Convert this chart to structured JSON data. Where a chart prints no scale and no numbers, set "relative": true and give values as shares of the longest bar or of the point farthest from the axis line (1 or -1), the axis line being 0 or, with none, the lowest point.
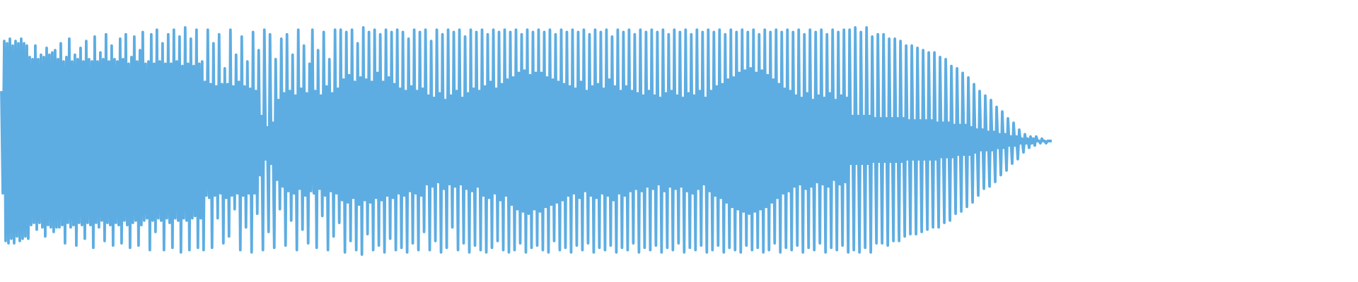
{
  "chart_data": {
    "type": "line",
    "relative": true,
    "tick_labels": false,
    "color": "#5dade2",
    "categories": [
      null,
      null,
      null,
      null,
      null,
      null,
      null,
      null,
      null,
      null,
      null,
      null,
      null,
      null,
      null,
      null,
      null,
      null,
      null,
      null,
      null,
      null,
      null,
      null,
      null,
      null,
      null,
      null,
      null,
      null,
      null,
      null,
      null,
      null,
      null,
      null,
      null,
      null,
      null,
      null,
      null,
      null,
      null,
      null,
      null,
      null,
      null,
      null,
      null,
      null,
      null,
      null,
      null,
      null,
      null,
      null,
      null,
      null,
      null,
      null,
      null,
      null,
      null,
      null,
      null,
      null,
      null,
      null,
      null,
      null,
      null,
      null,
      null,
      null,
      null,
      null,
      null,
      null,
      null,
      null,
      null,
      null,
      null,
      null,
      null,
      null,
      null,
      null,
      null,
      null,
      null,
      null,
      null,
      null,
      null,
      null,
      null,
      null,
      null,
      null,
      null,
      null,
      null,
      null,
      null,
      null,
      null,
      null,
      null,
      null,
      null,
      null,
      null,
      null,
      null,
      null,
      null,
      null,
      null,
      null,
      null,
      null,
      null,
      null,
      null,
      null,
      null,
      null,
      null,
      null,
      null,
      null,
      null,
      null,
      null,
      null,
      null,
      null,
      null,
      null,
      null,
      null,
      null,
      null,
      null,
      null,
      null,
      null,
      null,
      null,
      null,
      null,
      null,
      null,
      null,
      null,
      null,
      null,
      null,
      null,
      null,
      null,
      null,
      null,
      null,
      null,
      null,
      null,
      null,
      null,
      null,
      null,
      null,
      null,
      null,
      null,
      null,
      null,
      null,
      null,
      null,
      null,
      null,
      null,
      null,
      null,
      null,
      null,
      null,
      null,
      null,
      null,
      null,
      null,
      null,
      null,
      null,
      null,
      null,
      null,
      null,
      null,
      null,
      null,
      null,
      null,
      null,
      null,
      null,
      null,
      null,
      null,
      null,
      null,
      null,
      null,
      null,
      null,
      null,
      null,
      null,
      null,
      null,
      null,
      null,
      null,
      null,
      null,
      null,
      null,
      null,
      null,
      null,
      null,
      null,
      null,
      null,
      null,
      null,
      null,
      null,
      null,
      null,
      null,
      null,
      null,
      null,
      null,
      null,
      null,
      null,
      null,
      null,
      null,
      null,
      null,
      null,
      null,
      null,
      null,
      null,
      null,
      null,
      null,
      null,
      null,
      null,
      null,
      null,
      null,
      null,
      null,
      null,
      null,
      null,
      null,
      null,
      null,
      null,
      null,
      null,
      null,
      null,
      null,
      null,
      null,
      null,
      null,
      null,
      null,
      null,
      null,
      null,
      null,
      null,
      null,
      null,
      null,
      null,
      null,
      null,
      null,
      null,
      null,
      null,
      null,
      null,
      null,
      null,
      null,
      null,
      null,
      null,
      null,
      null,
      null,
      null,
      null,
      null,
      null,
      null,
      null,
      null,
      null,
      null,
      null,
      null,
      null,
      null,
      null,
      null,
      null,
      null,
      null,
      null,
      null,
      null,
      null,
      null,
      null,
      null,
      null,
      null,
      null,
      null,
      null,
      null,
      null,
      null,
      null,
      null,
      null,
      null,
      null,
      null,
      null,
      null,
      null,
      null,
      null,
      null,
      null,
      null,
      null,
      null,
      null,
      null,
      null,
      null,
      null,
      null,
      null,
      null,
      null,
      null,
      null,
      null,
      null,
      null,
      null,
      null,
      null,
      null,
      null,
      null,
      null,
      null,
      null,
      null,
      null,
      null,
      null,
      null,
      null,
      null,
      null,
      null,
      null,
      null,
      null,
      null,
      null,
      null,
      null,
      null,
      null,
      null,
      null,
      null,
      null,
      null,
      null,
      null,
      null,
      null,
      null,
      null,
      null,
      null,
      null,
      null,
      null,
      null,
      null,
      null,
      null,
      null,
      null,
      null,
      null,
      null,
      null,
      null,
      null,
      null,
      null,
      null,
      null,
      null,
      null,
      null,
      null,
      null,
      null,
      null,
      null,
      null,
      null,
      null,
      null,
      null,
      null,
      null,
      null,
      null,
      null,
      null,
      null,
      null,
      null,
      null,
      null,
      null,
      null,
      null,
      null,
      null,
      null,
      null,
      null,
      null,
      null,
      null,
      null,
      null,
      null,
      null,
      null,
      null,
      null,
      null,
      null,
      null,
      null,
      null,
      null,
      null,
      null,
      null,
      null,
      null,
      null,
      null,
      null,
      null,
      null,
      null,
      null,
      null,
      null,
      null,
      null,
      null,
      null,
      null,
      null,
      null,
      null,
      null,
      null,
      null,
      null,
      null,
      null,
      null,
      null,
      null,
      null,
      null,
      null,
      null,
      null,
      null,
      null,
      null,
      null,
      null,
      null,
      null,
      null,
      null,
      null,
      null,
      null,
      null,
      null,
      null,
      null,
      null,
      null,
      null,
      null,
      null,
      null,
      null,
      null,
      null,
      null,
      null,
      null,
      null,
      null,
      null,
      null,
      null,
      null,
      null,
      null,
      null,
      null,
      null,
      null,
      null,
      null,
      null,
      null,
      null,
      null,
      null,
      null,
      null,
      null,
      null,
      null,
      null,
      null,
      null,
      null,
      null,
      null,
      null,
      null,
      null,
      null,
      null,
      null,
      null,
      null,
      null,
      null,
      null,
      null,
      null,
      null,
      null,
      null,
      null,
      null,
      null,
      null,
      null,
      null,
      null,
      null,
      null,
      null,
      null,
      null,
      null,
      null,
      null,
      null,
      null,
      null,
      null,
      null,
      null,
      null,
      null,
      null,
      null,
      null,
      null,
      null,
      null,
      null,
      null,
      null,
      null,
      null,
      null,
      null,
      null,
      null,
      null,
      null,
      null,
      null,
      null,
      null,
      null,
      null,
      null,
      null,
      null,
      null,
      null,
      null,
      null,
      null,
      null,
      null,
      null,
      null,
      null,
      null,
      null,
      null,
      null,
      null,
      null,
      null,
      null,
      null,
      null,
      null,
      null,
      null,
      null,
      null,
      null,
      null,
      null,
      null,
      null,
      null,
      null,
      null,
      null,
      null,
      null,
      null,
      null,
      null,
      null,
      null,
      null,
      null,
      null,
      null,
      null,
      null,
      null,
      null,
      null,
      null,
      null,
      null,
      null,
      null,
      null,
      null,
      null,
      null,
      null,
      null,
      null,
      null,
      null,
      null,
      null,
      null,
      null,
      null,
      null,
      null,
      null,
      null,
      null,
      null,
      null,
      null,
      null,
      null,
      null,
      null,
      null,
      null,
      null,
      null,
      null,
      null,
      null,
      null,
      null,
      null,
      null,
      null,
      null,
      null,
      null,
      null,
      null,
      null
    ],
    "values": [
      0.72,
      0.27,
      0.94,
      0.06,
      0.93,
      0.05,
      0.95,
      0.07,
      0.92,
      0.05,
      0.94,
      0.08,
      0.93,
      0.06,
      0.95,
      0.07,
      0.93,
      0.08,
      0.92,
      0.07,
      0.87,
      0.13,
      0.86,
      0.14,
      0.92,
      0.11,
      0.86,
      0.14,
      0.88,
      0.12,
      0.87,
      0.08,
      0.91,
      0.13,
      0.88,
      0.12,
      0.89,
      0.1,
      0.9,
      0.12,
      0.86,
      0.12,
      0.93,
      0.13,
      0.85,
      0.05,
      0.87,
      0.14,
      0.95,
      0.12,
      0.85,
      0.13,
      0.88,
      0.04,
      0.86,
      0.14,
      0.91,
      0.13,
      0.85,
      0.07,
      0.94,
      0.14,
      0.86,
      0.13,
      0.85,
      0.03,
      0.96,
      0.14,
      0.85,
      0.12,
      0.89,
      0.15,
      0.86,
      0.06,
      0.97,
      0.14,
      0.85,
      0.13,
      0.92,
      0.04,
      0.86,
      0.14,
      0.85,
      0.13,
      0.95,
      0.05,
      0.86,
      0.15,
      0.97,
      0.13,
      0.84,
      0.03,
      0.87,
      0.14,
      0.96,
      0.15,
      0.85,
      0.04,
      0.9,
      0.13,
      0.98,
      0.15,
      0.84,
      0.16,
      0.85,
      0.02,
      0.97,
      0.15,
      0.84,
      0.1,
      0.99,
      0.16,
      0.85,
      0.15,
      0.93,
      0.02,
      0.84,
      0.16,
      0.97,
      0.14,
      0.84,
      0.03,
      0.99,
      0.16,
      0.85,
      0.15,
      0.96,
      0.01,
      0.83,
      0.16,
      1.0,
      0.15,
      0.84,
      0.02,
      0.95,
      0.16,
      0.83,
      0.17,
      0.99,
      0.03,
      0.84,
      0.16,
      0.85,
      0.02,
      0.76,
      0.26,
      0.99,
      0.25,
      0.75,
      0.03,
      0.93,
      0.26,
      0.74,
      0.16,
      0.97,
      0.27,
      0.75,
      0.05,
      0.82,
      0.25,
      0.75,
      0.08,
      0.99,
      0.26,
      0.74,
      0.2,
      0.88,
      0.27,
      0.76,
      0.02,
      0.96,
      0.26,
      0.74,
      0.12,
      0.85,
      0.27,
      0.73,
      0.01,
      0.98,
      0.27,
      0.72,
      0.18,
      0.9,
      0.35,
      0.61,
      0.02,
      0.99,
      0.42,
      0.56,
      0.1,
      0.97,
      0.4,
      0.58,
      0.03,
      0.86,
      0.33,
      0.68,
      0.2,
      0.95,
      0.3,
      0.71,
      0.04,
      0.97,
      0.28,
      0.72,
      0.15,
      0.88,
      0.27,
      0.7,
      0.02,
      0.99,
      0.29,
      0.73,
      0.11,
      0.92,
      0.26,
      0.71,
      0.05,
      0.84,
      0.28,
      0.99,
      0.27,
      0.72,
      0.03,
      0.9,
      0.29,
      0.7,
      0.17,
      0.98,
      0.26,
      0.74,
      0.02,
      0.86,
      0.28,
      0.71,
      0.08,
      0.99,
      0.27,
      0.73,
      0.14,
      0.99,
      0.24,
      0.77,
      0.01,
      0.98,
      0.23,
      0.79,
      0.06,
      0.99,
      0.25,
      0.76,
      0.02,
      0.93,
      0.22,
      0.78,
      0.0,
      1.0,
      0.24,
      0.77,
      0.09,
      0.98,
      0.23,
      0.76,
      0.02,
      0.99,
      0.25,
      0.8,
      0.04,
      0.97,
      0.24,
      0.76,
      0.01,
      0.99,
      0.26,
      0.78,
      0.07,
      0.98,
      0.25,
      0.75,
      0.02,
      0.99,
      0.27,
      0.73,
      0.03,
      0.98,
      0.26,
      0.72,
      0.01,
      0.95,
      0.28,
      0.74,
      0.05,
      0.99,
      0.27,
      0.72,
      0.02,
      0.98,
      0.26,
      0.73,
      0.1,
      0.99,
      0.31,
      0.7,
      0.02,
      0.94,
      0.3,
      0.69,
      0.06,
      0.99,
      0.32,
      0.71,
      0.01,
      0.97,
      0.29,
      0.68,
      0.03,
      0.99,
      0.31,
      0.7,
      0.12,
      0.98,
      0.3,
      0.72,
      0.02,
      0.99,
      0.31,
      0.69,
      0.05,
      0.96,
      0.29,
      0.71,
      0.01,
      0.99,
      0.28,
      0.73,
      0.04,
      0.98,
      0.3,
      0.72,
      0.02,
      0.99,
      0.26,
      0.74,
      0.01,
      0.97,
      0.25,
      0.76,
      0.03,
      0.99,
      0.27,
      0.73,
      0.06,
      0.98,
      0.24,
      0.75,
      0.02,
      0.99,
      0.26,
      0.77,
      0.01,
      0.98,
      0.22,
      0.78,
      0.02,
      0.99,
      0.2,
      0.8,
      0.05,
      0.97,
      0.19,
      0.81,
      0.01,
      0.99,
      0.18,
      0.79,
      0.03,
      0.98,
      0.2,
      0.8,
      0.04,
      0.99,
      0.19,
      0.8,
      0.02,
      0.98,
      0.21,
      0.78,
      0.01,
      0.99,
      0.22,
      0.77,
      0.06,
      0.97,
      0.23,
      0.76,
      0.02,
      0.99,
      0.24,
      0.75,
      0.03,
      0.98,
      0.26,
      0.74,
      0.01,
      0.99,
      0.27,
      0.73,
      0.04,
      0.98,
      0.25,
      0.76,
      0.02,
      0.99,
      0.28,
      0.72,
      0.05,
      0.97,
      0.26,
      0.74,
      0.01,
      0.99,
      0.25,
      0.75,
      0.03,
      0.98,
      0.27,
      0.73,
      0.02,
      0.99,
      0.26,
      0.77,
      0.04,
      0.96,
      0.24,
      0.74,
      0.01,
      0.99,
      0.27,
      0.72,
      0.03,
      0.98,
      0.26,
      0.74,
      0.02,
      0.99,
      0.28,
      0.72,
      0.05,
      0.97,
      0.29,
      0.71,
      0.01,
      0.99,
      0.28,
      0.7,
      0.03,
      0.98,
      0.3,
      0.72,
      0.02,
      0.99,
      0.29,
      0.7,
      0.04,
      0.98,
      0.31,
      0.69,
      0.01,
      0.99,
      0.28,
      0.71,
      0.03,
      0.97,
      0.3,
      0.72,
      0.02,
      0.99,
      0.29,
      0.7,
      0.05,
      0.98,
      0.3,
      0.69,
      0.01,
      0.99,
      0.28,
      0.71,
      0.03,
      0.97,
      0.27,
      0.7,
      0.02,
      0.99,
      0.29,
      0.72,
      0.04,
      0.98,
      0.31,
      0.69,
      0.01,
      0.99,
      0.28,
      0.72,
      0.02,
      0.98,
      0.26,
      0.74,
      0.04,
      0.99,
      0.25,
      0.75,
      0.01,
      0.97,
      0.23,
      0.77,
      0.03,
      0.99,
      0.21,
      0.78,
      0.02,
      0.98,
      0.2,
      0.8,
      0.01,
      0.99,
      0.19,
      0.81,
      0.04,
      0.98,
      0.18,
      0.82,
      0.02,
      0.99,
      0.19,
      0.8,
      0.03,
      0.97,
      0.2,
      0.81,
      0.01,
      0.99,
      0.21,
      0.79,
      0.02,
      0.98,
      0.23,
      0.77,
      0.05,
      0.99,
      0.25,
      0.75,
      0.01,
      0.98,
      0.27,
      0.73,
      0.03,
      0.99,
      0.28,
      0.72,
      0.02,
      0.98,
      0.3,
      0.7,
      0.04,
      0.99,
      0.31,
      0.69,
      0.01,
      0.97,
      0.29,
      0.71,
      0.03,
      0.99,
      0.3,
      0.68,
      0.02,
      0.98,
      0.32,
      0.7,
      0.05,
      0.99,
      0.31,
      0.69,
      0.01,
      0.97,
      0.3,
      0.71,
      0.03,
      0.99,
      0.33,
      0.68,
      0.02,
      0.98,
      0.31,
      0.7,
      0.04,
      0.99,
      0.32,
      0.69,
      0.01,
      0.99,
      0.4,
      0.61,
      0.02,
      1.0,
      0.4,
      0.61,
      0.01,
      0.98,
      0.4,
      0.61,
      0.03,
      1.0,
      0.4,
      0.61,
      0.01,
      0.96,
      0.41,
      0.6,
      0.05,
      0.97,
      0.41,
      0.6,
      0.05,
      0.97,
      0.41,
      0.6,
      0.04,
      0.95,
      0.41,
      0.6,
      0.06,
      0.95,
      0.41,
      0.6,
      0.06,
      0.94,
      0.41,
      0.6,
      0.08,
      0.92,
      0.42,
      0.59,
      0.09,
      0.92,
      0.42,
      0.59,
      0.09,
      0.91,
      0.42,
      0.59,
      0.1,
      0.9,
      0.42,
      0.59,
      0.11,
      0.89,
      0.42,
      0.59,
      0.12,
      0.89,
      0.42,
      0.58,
      0.12,
      0.87,
      0.43,
      0.58,
      0.14,
      0.86,
      0.43,
      0.58,
      0.15,
      0.83,
      0.43,
      0.57,
      0.18,
      0.82,
      0.44,
      0.57,
      0.19,
      0.8,
      0.44,
      0.57,
      0.21,
      0.78,
      0.44,
      0.56,
      0.23,
      0.75,
      0.45,
      0.55,
      0.26,
      0.72,
      0.46,
      0.55,
      0.29,
      0.7,
      0.46,
      0.54,
      0.3,
      0.68,
      0.46,
      0.54,
      0.32,
      0.65,
      0.47,
      0.53,
      0.35,
      0.63,
      0.47,
      0.53,
      0.37,
      0.6,
      0.48,
      0.52,
      0.4,
      0.58,
      0.48,
      0.52,
      0.42,
      0.55,
      0.49,
      0.51,
      0.45,
      0.53,
      0.49,
      0.51,
      0.47,
      0.52,
      0.49,
      0.51,
      0.48,
      0.52,
      0.5,
      0.5,
      0.49,
      0.51,
      0.5,
      0.5,
      0.49,
      0.5,
      0.5,
      0.5,
      0.5
    ]
  }
}
